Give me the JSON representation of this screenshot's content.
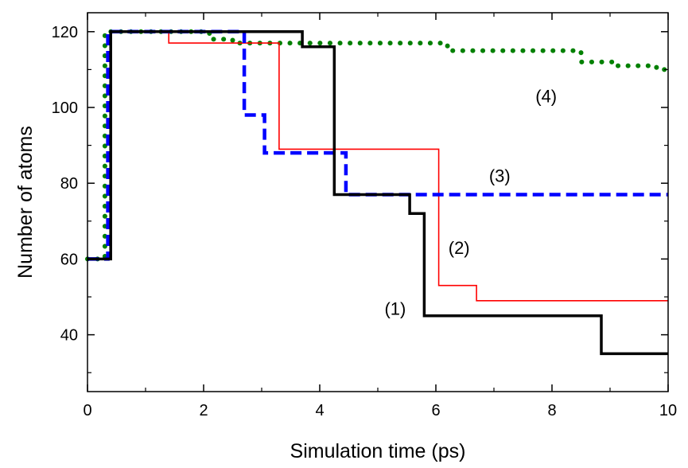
{
  "chart_data": {
    "type": "line",
    "xlabel": "Simulation time (ps)",
    "ylabel": "Number of atoms",
    "xlim": [
      0,
      10
    ],
    "ylim": [
      25,
      125
    ],
    "xticks": [
      0,
      2,
      4,
      6,
      8,
      10
    ],
    "yticks": [
      40,
      60,
      80,
      100,
      120
    ],
    "xtick_labels": [
      "0",
      "2",
      "4",
      "6",
      "8",
      "10"
    ],
    "ytick_labels": [
      "40",
      "60",
      "80",
      "100",
      "120"
    ],
    "grid": false,
    "series": [
      {
        "name": "(1)",
        "color": "#000000",
        "style": "solid-thick",
        "x": [
          0,
          0.4,
          0.4,
          3.7,
          3.7,
          4.25,
          4.25,
          5.55,
          5.55,
          5.8,
          5.8,
          8.85,
          8.85,
          10
        ],
        "y": [
          60,
          60,
          120,
          120,
          116,
          116,
          77,
          77,
          72,
          72,
          45,
          45,
          35,
          35
        ]
      },
      {
        "name": "(2)",
        "color": "#ff0000",
        "style": "solid-thin",
        "x": [
          0,
          0.4,
          0.4,
          1.4,
          1.4,
          3.3,
          3.3,
          6.05,
          6.05,
          6.7,
          6.7,
          10
        ],
        "y": [
          60,
          60,
          120,
          120,
          117,
          117,
          89,
          89,
          53,
          53,
          49,
          49
        ]
      },
      {
        "name": "(3)",
        "color": "#0000ff",
        "style": "dashed",
        "x": [
          0,
          0.35,
          0.35,
          2.7,
          2.7,
          3.05,
          3.05,
          3.05,
          3.05,
          4.45,
          4.45,
          10
        ],
        "y": [
          60,
          60,
          120,
          120,
          98,
          98,
          94,
          94,
          88,
          88,
          77,
          77
        ]
      },
      {
        "name": "(4)",
        "color": "#008000",
        "style": "dotted",
        "x": [
          0,
          0.3,
          0.3,
          2.1,
          2.1,
          2.5,
          2.5,
          6.2,
          6.2,
          8.5,
          8.5,
          9.1,
          9.1,
          9.8,
          9.8,
          10
        ],
        "y": [
          60,
          60,
          120,
          120,
          118,
          118,
          117,
          117,
          115,
          115,
          112,
          112,
          111,
          111,
          110,
          110
        ]
      }
    ],
    "annotations": [
      {
        "text": "(1)",
        "x": 5.3,
        "y": 47
      },
      {
        "text": "(2)",
        "x": 6.4,
        "y": 63
      },
      {
        "text": "(3)",
        "x": 7.1,
        "y": 82
      },
      {
        "text": "(4)",
        "x": 7.9,
        "y": 103
      }
    ]
  }
}
